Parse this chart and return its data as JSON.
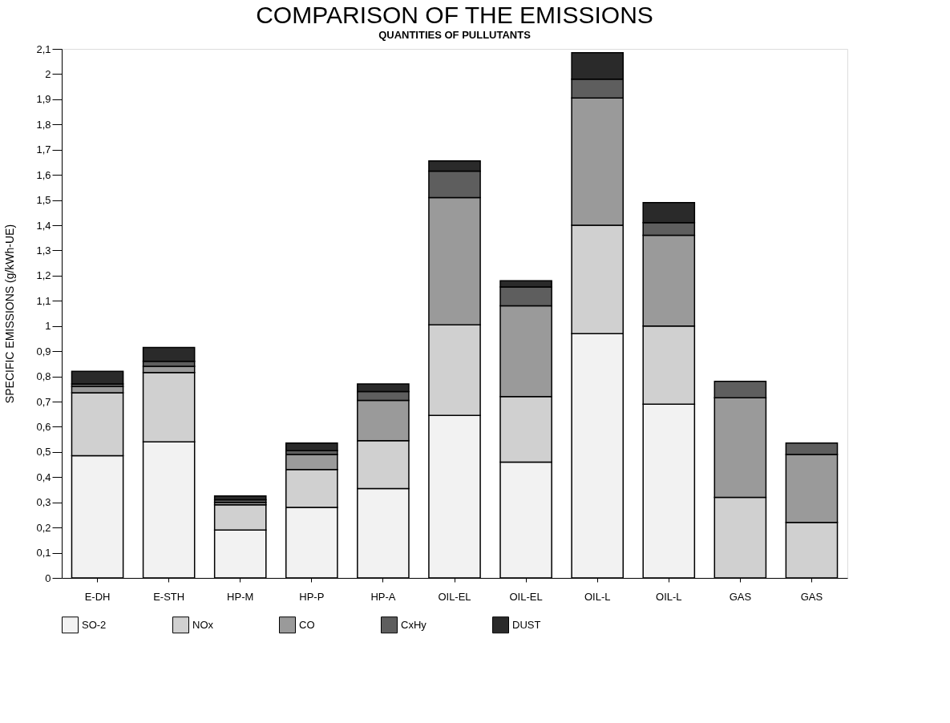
{
  "chart_data": {
    "type": "bar",
    "stacked": true,
    "title": "COMPARISON OF THE EMISSIONS",
    "subtitle": "QUANTITIES OF PULLUTANTS",
    "ylabel": "SPECIFIC EMISSIONS (g/kWh-UE)",
    "categories": [
      "E-DH",
      "E-STH",
      "HP-M",
      "HP-P",
      "HP-A",
      "OIL-EL",
      "OIL-EL",
      "OIL-L",
      "OIL-L",
      "GAS",
      "GAS"
    ],
    "series": [
      {
        "name": "SO-2",
        "color": "#f2f2f2",
        "values": [
          0.485,
          0.54,
          0.19,
          0.28,
          0.355,
          0.645,
          0.46,
          0.97,
          0.69,
          null,
          null
        ]
      },
      {
        "name": "NOx",
        "color": "#d0d0d0",
        "values": [
          0.25,
          0.275,
          0.1,
          0.15,
          0.19,
          0.36,
          0.26,
          0.43,
          0.31,
          0.32,
          0.22
        ]
      },
      {
        "name": "CO",
        "color": "#9a9a9a",
        "values": [
          0.025,
          0.025,
          0.01,
          0.06,
          0.16,
          0.505,
          0.36,
          0.505,
          0.36,
          0.395,
          0.27
        ]
      },
      {
        "name": "CxHy",
        "color": "#5e5e5e",
        "values": [
          0.01,
          0.02,
          0.01,
          0.015,
          0.035,
          0.105,
          0.075,
          0.075,
          0.05,
          0.065,
          0.045
        ]
      },
      {
        "name": "DUST",
        "color": "#2a2a2a",
        "values": [
          0.05,
          0.055,
          0.015,
          0.03,
          0.03,
          0.04,
          0.025,
          0.105,
          0.08,
          null,
          null
        ]
      }
    ],
    "ylim": [
      0,
      2.1
    ],
    "yticks": [
      0,
      {
        "value": 0.1,
        "label": "0,1"
      },
      {
        "value": 0.2,
        "label": "0,2"
      },
      {
        "value": 0.3,
        "label": "0,3"
      },
      {
        "value": 0.4,
        "label": "0,4"
      },
      {
        "value": 0.5,
        "label": "0,5"
      },
      {
        "value": 0.6,
        "label": "0,6"
      },
      {
        "value": 0.7,
        "label": "0,7"
      },
      {
        "value": 0.8,
        "label": "0,8"
      },
      {
        "value": 0.9,
        "label": "0,9"
      },
      1,
      {
        "value": 1.1,
        "label": "1,1"
      },
      {
        "value": 1.2,
        "label": "1,2"
      },
      {
        "value": 1.3,
        "label": "1,3"
      },
      {
        "value": 1.4,
        "label": "1,4"
      },
      {
        "value": 1.5,
        "label": "1,5"
      },
      {
        "value": 1.6,
        "label": "1,6"
      },
      {
        "value": 1.7,
        "label": "1,7"
      },
      {
        "value": 1.8,
        "label": "1,8"
      },
      {
        "value": 1.9,
        "label": "1,9"
      },
      2,
      {
        "value": 2.1,
        "label": "2,1"
      }
    ],
    "legend": "bottom",
    "grid": false
  }
}
